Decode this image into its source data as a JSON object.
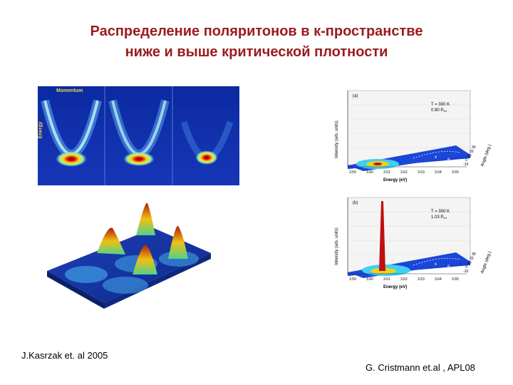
{
  "slide": {
    "title_line1": "Распределение поляритонов в к-пространстве",
    "title_line2": "ниже и выше  критической  плотности",
    "reference_left": "J.Kasrzak et. al  2005",
    "reference_right": "G. Cristmann et.al , APL08"
  },
  "dispersion_image": {
    "x_label": "Momentum",
    "y_label": "Energy"
  },
  "spectrum_a": {
    "panel_label": "(a)",
    "temp": "T = 300 K",
    "power": "0.90 P",
    "power_sub": "thr",
    "y_label": "Intensity (arb. units)",
    "x_label": "Energy (eV)",
    "z_label": "Angle (deg.)",
    "x_ticks": [
      "3.59",
      "3.60",
      "3.61",
      "3.62",
      "3.63",
      "3.64",
      "3.65"
    ],
    "z_ticks": [
      "30",
      "20",
      "10",
      "0",
      "-10"
    ],
    "kx": "x",
    "theta": "θ"
  },
  "spectrum_b": {
    "panel_label": "(b)",
    "temp": "T = 300 K",
    "power": "1.03 P",
    "power_sub": "thr",
    "y_label": "Intensity (arb. units)",
    "x_label": "Energy (eV)",
    "z_label": "Angle (deg.)",
    "x_ticks": [
      "3.59",
      "3.60",
      "3.61",
      "3.62",
      "3.63",
      "3.64",
      "3.65"
    ],
    "z_ticks": [
      "30",
      "20",
      "10",
      "0",
      "-10"
    ],
    "kx": "x",
    "theta": "θ"
  }
}
